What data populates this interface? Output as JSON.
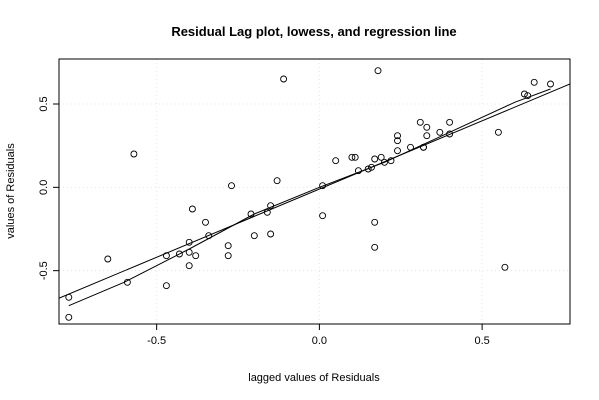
{
  "chart_data": {
    "type": "scatter",
    "title": "Residual Lag plot, lowess, and regression line",
    "xlabel": "lagged values of Residuals",
    "ylabel": "values of Residuals",
    "xlim": [
      -0.8,
      0.77
    ],
    "ylim": [
      -0.82,
      0.77
    ],
    "xticks": [
      -0.5,
      0.0,
      0.5
    ],
    "xtick_labels": [
      "-0.5",
      "0.0",
      "0.5"
    ],
    "yticks": [
      -0.5,
      0.0,
      0.5
    ],
    "yticks_labels": [
      "-0.5",
      "0.0",
      "0.5"
    ],
    "grid": true,
    "points": [
      {
        "x": -0.77,
        "y": -0.66
      },
      {
        "x": -0.77,
        "y": -0.78
      },
      {
        "x": -0.65,
        "y": -0.43
      },
      {
        "x": -0.59,
        "y": -0.57
      },
      {
        "x": -0.57,
        "y": 0.2
      },
      {
        "x": -0.47,
        "y": -0.41
      },
      {
        "x": -0.47,
        "y": -0.59
      },
      {
        "x": -0.43,
        "y": -0.4
      },
      {
        "x": -0.4,
        "y": -0.33
      },
      {
        "x": -0.4,
        "y": -0.39
      },
      {
        "x": -0.4,
        "y": -0.47
      },
      {
        "x": -0.39,
        "y": -0.13
      },
      {
        "x": -0.38,
        "y": -0.41
      },
      {
        "x": -0.35,
        "y": -0.21
      },
      {
        "x": -0.34,
        "y": -0.29
      },
      {
        "x": -0.28,
        "y": -0.35
      },
      {
        "x": -0.28,
        "y": -0.41
      },
      {
        "x": -0.27,
        "y": 0.01
      },
      {
        "x": -0.21,
        "y": -0.16
      },
      {
        "x": -0.2,
        "y": -0.29
      },
      {
        "x": -0.16,
        "y": -0.15
      },
      {
        "x": -0.15,
        "y": -0.28
      },
      {
        "x": -0.15,
        "y": -0.11
      },
      {
        "x": -0.13,
        "y": 0.04
      },
      {
        "x": -0.11,
        "y": 0.65
      },
      {
        "x": 0.01,
        "y": 0.01
      },
      {
        "x": 0.01,
        "y": -0.17
      },
      {
        "x": 0.05,
        "y": 0.16
      },
      {
        "x": 0.1,
        "y": 0.18
      },
      {
        "x": 0.11,
        "y": 0.18
      },
      {
        "x": 0.12,
        "y": 0.1
      },
      {
        "x": 0.15,
        "y": 0.11
      },
      {
        "x": 0.16,
        "y": 0.12
      },
      {
        "x": 0.17,
        "y": -0.21
      },
      {
        "x": 0.17,
        "y": -0.36
      },
      {
        "x": 0.17,
        "y": 0.17
      },
      {
        "x": 0.18,
        "y": 0.7
      },
      {
        "x": 0.19,
        "y": 0.18
      },
      {
        "x": 0.2,
        "y": 0.15
      },
      {
        "x": 0.22,
        "y": 0.16
      },
      {
        "x": 0.24,
        "y": 0.31
      },
      {
        "x": 0.24,
        "y": 0.28
      },
      {
        "x": 0.24,
        "y": 0.22
      },
      {
        "x": 0.28,
        "y": 0.24
      },
      {
        "x": 0.31,
        "y": 0.39
      },
      {
        "x": 0.32,
        "y": 0.24
      },
      {
        "x": 0.32,
        "y": 0.24
      },
      {
        "x": 0.33,
        "y": 0.36
      },
      {
        "x": 0.33,
        "y": 0.31
      },
      {
        "x": 0.37,
        "y": 0.33
      },
      {
        "x": 0.4,
        "y": 0.39
      },
      {
        "x": 0.4,
        "y": 0.32
      },
      {
        "x": 0.55,
        "y": 0.33
      },
      {
        "x": 0.57,
        "y": -0.48
      },
      {
        "x": 0.63,
        "y": 0.56
      },
      {
        "x": 0.64,
        "y": 0.55
      },
      {
        "x": 0.66,
        "y": 0.63
      },
      {
        "x": 0.71,
        "y": 0.62
      }
    ],
    "lines": [
      {
        "name": "",
        "role": "regression",
        "x": [
          -0.83,
          0.77
        ],
        "y": [
          -0.69,
          0.62
        ]
      },
      {
        "name": "",
        "role": "lowess",
        "x": [
          -0.77,
          -0.6,
          -0.4,
          -0.2,
          0.0,
          0.2,
          0.4,
          0.6,
          0.71
        ],
        "y": [
          -0.71,
          -0.57,
          -0.37,
          -0.16,
          0.0,
          0.15,
          0.33,
          0.51,
          0.59
        ]
      }
    ]
  }
}
